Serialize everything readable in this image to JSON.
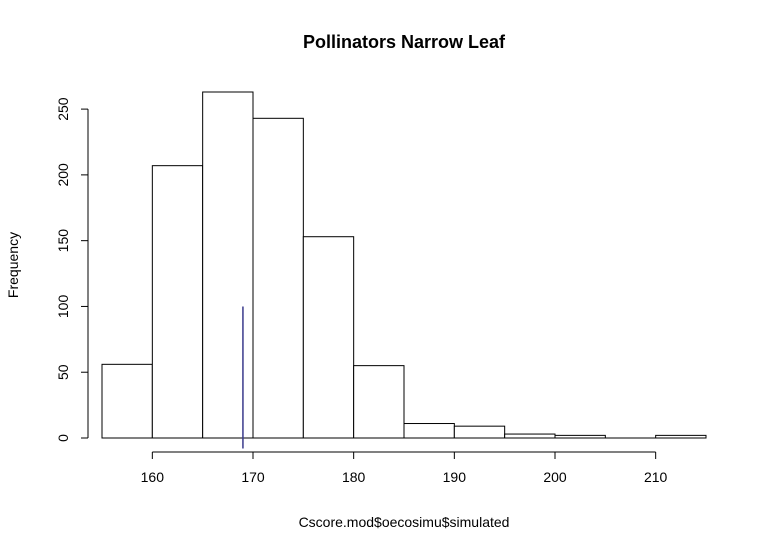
{
  "chart_data": {
    "type": "bar",
    "title": "Pollinators Narrow Leaf",
    "xlabel": "Cscore.mod$oecosimu$simulated",
    "ylabel": "Frequency",
    "bins": [
      {
        "start": 155,
        "end": 160,
        "count": 56
      },
      {
        "start": 160,
        "end": 165,
        "count": 207
      },
      {
        "start": 165,
        "end": 170,
        "count": 263
      },
      {
        "start": 170,
        "end": 175,
        "count": 243
      },
      {
        "start": 175,
        "end": 180,
        "count": 153
      },
      {
        "start": 180,
        "end": 185,
        "count": 55
      },
      {
        "start": 185,
        "end": 190,
        "count": 11
      },
      {
        "start": 190,
        "end": 195,
        "count": 9
      },
      {
        "start": 195,
        "end": 200,
        "count": 3
      },
      {
        "start": 200,
        "end": 205,
        "count": 2
      },
      {
        "start": 205,
        "end": 210,
        "count": 0
      },
      {
        "start": 210,
        "end": 215,
        "count": 2
      }
    ],
    "xlim": [
      155,
      215
    ],
    "ylim": [
      0,
      263
    ],
    "x_ticks": [
      160,
      170,
      180,
      190,
      200,
      210
    ],
    "y_ticks": [
      0,
      50,
      100,
      150,
      200,
      250
    ],
    "observed_line": {
      "x": 169,
      "y_from": -8,
      "y_to": 100,
      "color": "#3a3a8c"
    },
    "bar_fill": "#ffffff",
    "bar_stroke": "#000000",
    "grid": false,
    "legend": "none"
  }
}
